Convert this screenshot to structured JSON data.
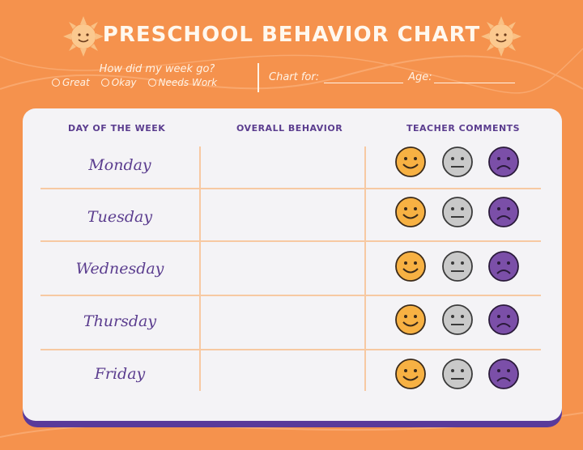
{
  "title": "PRESCHOOL BEHAVIOR CHART",
  "week_question": "How did my week go?",
  "options": [
    "Great",
    "Okay",
    "Needs Work"
  ],
  "chart_for_label": "Chart for:",
  "age_label": "Age:",
  "columns": [
    "DAY OF THE WEEK",
    "OVERALL BEHAVIOR",
    "TEACHER COMMENTS"
  ],
  "days": [
    "Monday",
    "Tuesday",
    "Wednesday",
    "Thursday",
    "Friday"
  ],
  "face_icons": [
    "happy-face-icon",
    "neutral-face-icon",
    "sad-face-icon"
  ],
  "colors": {
    "background": "#f5924d",
    "card": "#f4f3f6",
    "accent_purple": "#5b3d8f",
    "happy": "#f7b143",
    "neutral": "#c9c9c9",
    "sad": "#7b4fa8",
    "grid": "#f7c9a2"
  }
}
